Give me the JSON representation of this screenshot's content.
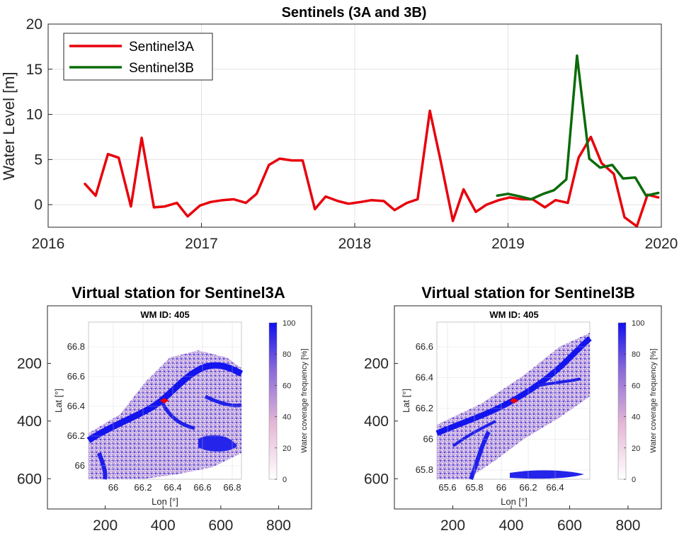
{
  "chart_data": [
    {
      "type": "line",
      "title": "Sentinels (3A and 3B)",
      "xlabel": "",
      "ylabel": "Water Level [m]",
      "xlim": [
        2016,
        2020
      ],
      "ylim": [
        -2.5,
        20
      ],
      "xticks": [
        "2016",
        "2017",
        "2018",
        "2019",
        "2020"
      ],
      "yticks": [
        "0",
        "5",
        "10",
        "15",
        "20"
      ],
      "grid": true,
      "legend": "top-left",
      "series": [
        {
          "name": "Sentinel3A",
          "color": "#e8000b",
          "x": [
            2016.24,
            2016.31,
            2016.39,
            2016.46,
            2016.54,
            2016.61,
            2016.69,
            2016.76,
            2016.84,
            2016.91,
            2016.99,
            2017.06,
            2017.14,
            2017.21,
            2017.29,
            2017.36,
            2017.44,
            2017.51,
            2017.59,
            2017.66,
            2017.74,
            2017.81,
            2017.89,
            2017.96,
            2018.04,
            2018.11,
            2018.19,
            2018.26,
            2018.34,
            2018.41,
            2018.49,
            2018.56,
            2018.64,
            2018.71,
            2018.79,
            2018.86,
            2018.94,
            2019.01,
            2019.09,
            2019.16,
            2019.24,
            2019.31,
            2019.39,
            2019.46,
            2019.54,
            2019.61,
            2019.69,
            2019.76,
            2019.84,
            2019.91,
            2019.98
          ],
          "values": [
            2.3,
            1.0,
            5.6,
            5.2,
            -0.2,
            7.4,
            -0.3,
            -0.2,
            0.2,
            -1.3,
            -0.1,
            0.3,
            0.5,
            0.6,
            0.2,
            1.2,
            4.4,
            5.1,
            4.9,
            4.9,
            -0.5,
            0.9,
            0.4,
            0.1,
            0.3,
            0.5,
            0.4,
            -0.6,
            0.2,
            0.6,
            10.4,
            4.9,
            -1.8,
            1.7,
            -0.8,
            0.0,
            0.5,
            0.8,
            0.6,
            0.6,
            -0.3,
            0.5,
            0.2,
            5.2,
            7.5,
            4.6,
            3.4,
            -1.4,
            -2.4,
            1.1,
            0.8
          ]
        },
        {
          "name": "Sentinel3B",
          "color": "#0a6b0a",
          "x": [
            2018.93,
            2019.0,
            2019.08,
            2019.15,
            2019.23,
            2019.3,
            2019.38,
            2019.45,
            2019.53,
            2019.6,
            2019.68,
            2019.75,
            2019.83,
            2019.9,
            2019.98
          ],
          "values": [
            1.0,
            1.2,
            0.9,
            0.6,
            1.2,
            1.6,
            2.8,
            16.5,
            5.1,
            4.1,
            4.4,
            2.9,
            3.0,
            1.0,
            1.3
          ]
        }
      ]
    },
    {
      "type": "heatmap",
      "title": "Virtual station for Sentinel3A",
      "title_color": "#e8000b",
      "outer_xticks": [
        "200",
        "400",
        "600",
        "800"
      ],
      "outer_yticks": [
        "200",
        "400",
        "600"
      ],
      "inner_title": "WM ID: 405",
      "inner_xlabel": "Lon [°]",
      "inner_ylabel": "Lat [°]",
      "inner_xticks": [
        "66",
        "66.2",
        "66.4",
        "66.6",
        "66.8"
      ],
      "inner_yticks": [
        "66",
        "66.2",
        "66.4",
        "66.6",
        "66.8"
      ],
      "colorbar_label": "Water coverage frequency [%]",
      "colorbar_ticks": [
        "0",
        "20",
        "40",
        "60",
        "80",
        "100"
      ]
    },
    {
      "type": "heatmap",
      "title": "Virtual station for Sentinel3B",
      "title_color": "#0a6b0a",
      "outer_xticks": [
        "200",
        "400",
        "600",
        "800"
      ],
      "outer_yticks": [
        "200",
        "400",
        "600"
      ],
      "inner_title": "WM ID: 405",
      "inner_xlabel": "Lon [°]",
      "inner_ylabel": "Lat [°]",
      "inner_xticks": [
        "65.6",
        "65.8",
        "66",
        "66.2",
        "66.4"
      ],
      "inner_yticks": [
        "65.8",
        "66",
        "66.2",
        "66.4",
        "66.6"
      ],
      "colorbar_label": "Water coverage frequency [%]",
      "colorbar_ticks": [
        "0",
        "20",
        "40",
        "60",
        "80",
        "100"
      ]
    }
  ]
}
